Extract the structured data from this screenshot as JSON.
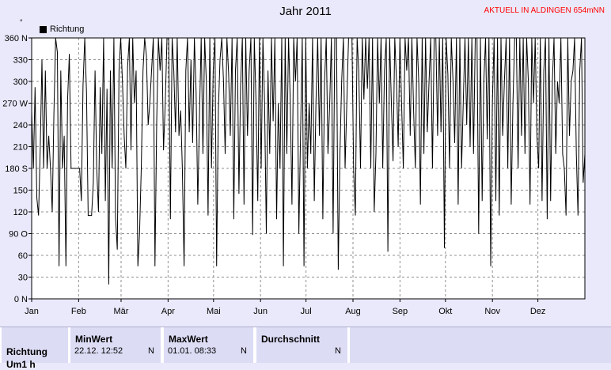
{
  "title": "Jahr 2011",
  "location": "AKTUELL IN ALDINGEN 654mNN",
  "unit_symbol": "°",
  "legend": [
    "Richtung"
  ],
  "colors": {
    "background": "#e9e9fb",
    "plot_bg": "#ffffff",
    "line": "#000000",
    "accent": "#ff0000"
  },
  "chart_data": {
    "type": "line",
    "title": "Jahr 2011",
    "ylabel": "°",
    "ylim": [
      0,
      360
    ],
    "xlim": [
      0,
      365
    ],
    "y_ticks": [
      0,
      30,
      60,
      90,
      120,
      150,
      180,
      210,
      240,
      270,
      300,
      330,
      360
    ],
    "y_tick_labels": [
      "0 N",
      "30",
      "60",
      "90 O",
      "120",
      "150",
      "180 S",
      "210",
      "240",
      "270 W",
      "300",
      "330",
      "360 N"
    ],
    "x_ticks": [
      0,
      31,
      59,
      90,
      120,
      151,
      181,
      212,
      243,
      273,
      304,
      334
    ],
    "x_tick_labels": [
      "Jan",
      "Feb",
      "Mär",
      "Apr",
      "Mai",
      "Jun",
      "Jul",
      "Aug",
      "Sep",
      "Okt",
      "Nov",
      "Dez"
    ],
    "grid": true,
    "legend_position": "top-left",
    "series": [
      {
        "name": "Richtung",
        "values": [
          260,
          180,
          292,
          140,
          115,
          205,
          330,
          180,
          315,
          180,
          225,
          180,
          120,
          255,
          360,
          340,
          45,
          315,
          180,
          225,
          45,
          275,
          338,
          180,
          180,
          180,
          180,
          180,
          180,
          135,
          295,
          360,
          285,
          115,
          115,
          115,
          160,
          315,
          180,
          120,
          292,
          200,
          360,
          135,
          290,
          20,
          315,
          180,
          360,
          112,
          68,
          315,
          360,
          300,
          225,
          180,
          320,
          360,
          205,
          360,
          270,
          315,
          45,
          90,
          180,
          315,
          360,
          335,
          240,
          270,
          315,
          360,
          45,
          245,
          360,
          315,
          360,
          205,
          270,
          360,
          360,
          110,
          360,
          315,
          230,
          360,
          225,
          260,
          180,
          45,
          315,
          360,
          230,
          330,
          215,
          360,
          285,
          130,
          255,
          360,
          200,
          360,
          300,
          115,
          360,
          180,
          315,
          360,
          45,
          260,
          330,
          360,
          300,
          200,
          360,
          310,
          225,
          360,
          110,
          315,
          360,
          145,
          295,
          360,
          130,
          360,
          225,
          315,
          360,
          88,
          360,
          270,
          135,
          360,
          180,
          360,
          270,
          90,
          315,
          200,
          360,
          245,
          360,
          110,
          270,
          180,
          360,
          45,
          360,
          200,
          360,
          270,
          130,
          360,
          300,
          360,
          90,
          230,
          360,
          45,
          360,
          180,
          270,
          200,
          360,
          135,
          270,
          360,
          225,
          360,
          110,
          300,
          360,
          200,
          270,
          360,
          90,
          360,
          360,
          40,
          200,
          300,
          360,
          180,
          270,
          360,
          360,
          360,
          180,
          115,
          360,
          315,
          180,
          360,
          275,
          360,
          290,
          360,
          180,
          360,
          120,
          200,
          360,
          270,
          360,
          180,
          315,
          360,
          65,
          360,
          270,
          190,
          360,
          300,
          210,
          360,
          270,
          180,
          360,
          315,
          360,
          225,
          360,
          260,
          180,
          360,
          300,
          130,
          360,
          200,
          360,
          230,
          300,
          360,
          180,
          360,
          360,
          225,
          360,
          230,
          360,
          70,
          360,
          310,
          180,
          360,
          300,
          215,
          360,
          130,
          360,
          180,
          270,
          360,
          240,
          360,
          210,
          360,
          200,
          360,
          360,
          90,
          360,
          135,
          300,
          360,
          220,
          360,
          45,
          270,
          360,
          135,
          360,
          115,
          360,
          225,
          300,
          360,
          180,
          360,
          130,
          270,
          360,
          360,
          180,
          360,
          225,
          360,
          200,
          360,
          300,
          130,
          360,
          270,
          360,
          225,
          180,
          360,
          135,
          315,
          360,
          110,
          360,
          135,
          300,
          360,
          200,
          300,
          270,
          360,
          200,
          180,
          115,
          360,
          225,
          300,
          315,
          360,
          200,
          115,
          315,
          360,
          160,
          200
        ]
      }
    ]
  },
  "stats": {
    "col_headers": [
      "MinWert",
      "MaxWert",
      "Durchschnitt"
    ],
    "row_label": "Richtung",
    "row_label_2": "Um1  h",
    "min_value": "22.12.  12:52",
    "min_unit": "N",
    "max_value": "01.01.  08:33",
    "max_unit": "N",
    "avg_value": "",
    "avg_unit": "N"
  }
}
